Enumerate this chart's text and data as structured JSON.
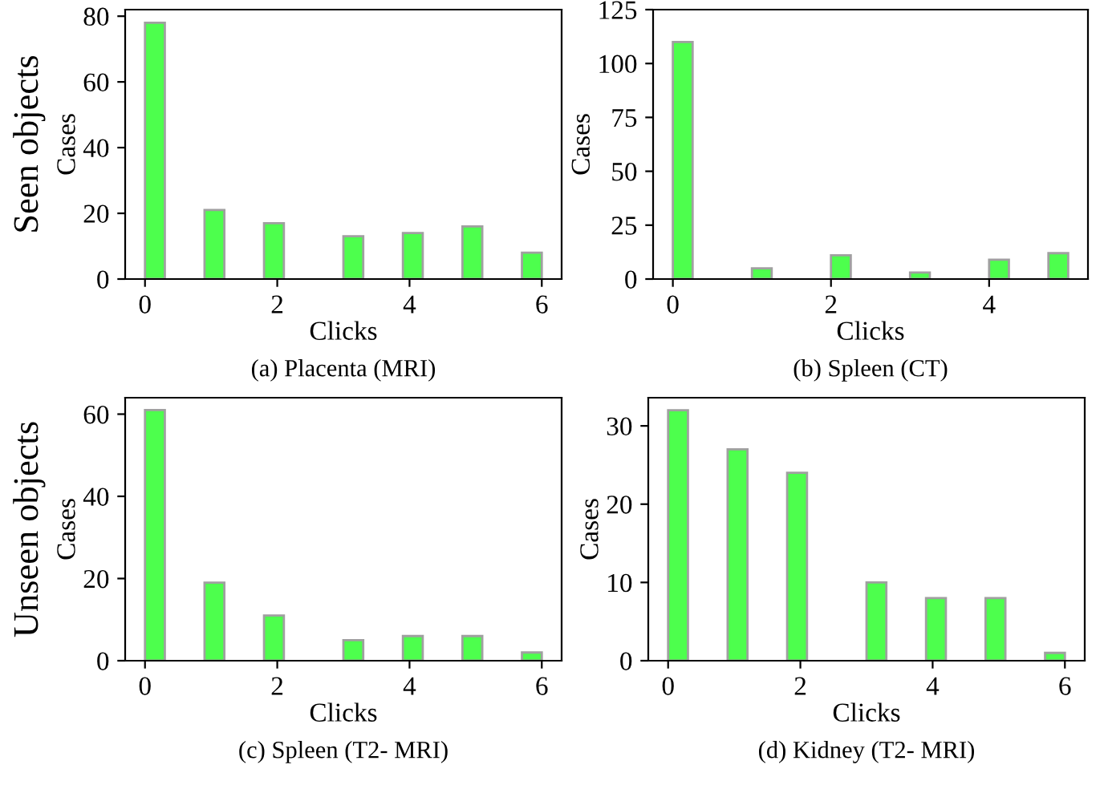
{
  "chart_data": [
    {
      "type": "histogram",
      "title": "(a) Placenta (MRI)",
      "xlabel": "Clicks",
      "ylabel": "Cases",
      "annotations": [
        "Seen objects"
      ],
      "color": "#4dff4d",
      "bins": [
        0,
        0.3,
        0.6,
        0.9,
        1.2,
        1.5,
        1.8,
        2.1,
        2.4,
        2.7,
        3.0,
        3.3,
        3.6,
        3.9,
        4.2,
        4.5,
        4.8,
        5.1,
        5.4,
        5.7,
        6.0
      ],
      "values": [
        78,
        0,
        0,
        21,
        0,
        0,
        17,
        0,
        0,
        0,
        13,
        0,
        0,
        14,
        0,
        0,
        16,
        0,
        0,
        8
      ],
      "xlim": [
        -0.3,
        6.3
      ],
      "xticks": [
        0,
        2,
        4,
        6
      ],
      "ylim": [
        0,
        82
      ],
      "yticks": [
        0,
        20,
        40,
        60,
        80
      ],
      "grid": false
    },
    {
      "type": "histogram",
      "title": "(b) Spleen (CT)",
      "xlabel": "Clicks",
      "ylabel": "Cases",
      "color": "#4dff4d",
      "bins": [
        0,
        0.25,
        0.5,
        0.75,
        1.0,
        1.25,
        1.5,
        1.75,
        2.0,
        2.25,
        2.5,
        2.75,
        3.0,
        3.25,
        3.5,
        3.75,
        4.0,
        4.25,
        4.5,
        4.75,
        5.0
      ],
      "values": [
        110,
        0,
        0,
        0,
        5,
        0,
        0,
        0,
        11,
        0,
        0,
        0,
        3,
        0,
        0,
        0,
        9,
        0,
        0,
        12
      ],
      "xlim": [
        -0.25,
        5.25
      ],
      "xticks": [
        0,
        2,
        4
      ],
      "ylim": [
        0,
        125
      ],
      "yticks": [
        0,
        25,
        50,
        75,
        100,
        125
      ],
      "grid": false
    },
    {
      "type": "histogram",
      "title": "(c) Spleen (T2- MRI)",
      "xlabel": "Clicks",
      "ylabel": "Cases",
      "annotations": [
        "Unseen objects"
      ],
      "color": "#4dff4d",
      "bins": [
        0,
        0.3,
        0.6,
        0.9,
        1.2,
        1.5,
        1.8,
        2.1,
        2.4,
        2.7,
        3.0,
        3.3,
        3.6,
        3.9,
        4.2,
        4.5,
        4.8,
        5.1,
        5.4,
        5.7,
        6.0
      ],
      "values": [
        61,
        0,
        0,
        19,
        0,
        0,
        11,
        0,
        0,
        0,
        5,
        0,
        0,
        6,
        0,
        0,
        6,
        0,
        0,
        2
      ],
      "xlim": [
        -0.3,
        6.3
      ],
      "xticks": [
        0,
        2,
        4,
        6
      ],
      "ylim": [
        0,
        64
      ],
      "yticks": [
        0,
        20,
        40,
        60
      ],
      "grid": false
    },
    {
      "type": "histogram",
      "title": "(d) Kidney (T2- MRI)",
      "xlabel": "Clicks",
      "ylabel": "Cases",
      "color": "#4dff4d",
      "bins": [
        0,
        0.3,
        0.6,
        0.9,
        1.2,
        1.5,
        1.8,
        2.1,
        2.4,
        2.7,
        3.0,
        3.3,
        3.6,
        3.9,
        4.2,
        4.5,
        4.8,
        5.1,
        5.4,
        5.7,
        6.0
      ],
      "values": [
        32,
        0,
        0,
        27,
        0,
        0,
        24,
        0,
        0,
        0,
        10,
        0,
        0,
        8,
        0,
        0,
        8,
        0,
        0,
        1
      ],
      "xlim": [
        -0.3,
        6.3
      ],
      "xticks": [
        0,
        2,
        4,
        6
      ],
      "ylim": [
        0,
        33.6
      ],
      "yticks": [
        0,
        10,
        20,
        30
      ],
      "grid": false
    }
  ]
}
